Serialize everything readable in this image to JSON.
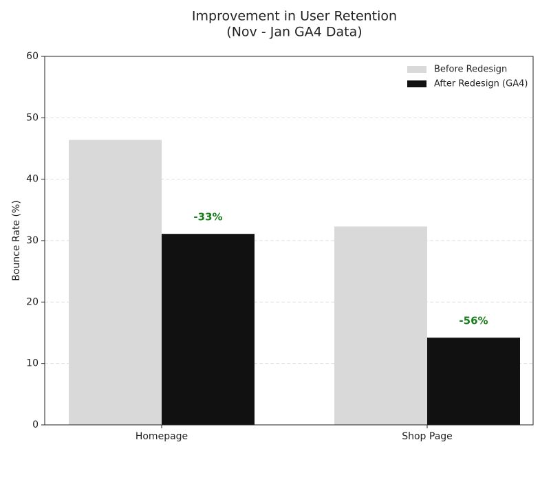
{
  "chart_data": {
    "type": "bar",
    "title": "Improvement in User Retention",
    "subtitle": "(Nov - Jan GA4 Data)",
    "y_label": "Bounce Rate (%)",
    "categories": [
      "Homepage",
      "Shop Page"
    ],
    "series": [
      {
        "name": "Before Redesign",
        "color": "#d9d9d9",
        "values": [
          46.4,
          32.3
        ]
      },
      {
        "name": "After Redesign (GA4)",
        "color": "#111111",
        "values": [
          31.1,
          14.2
        ]
      }
    ],
    "annotations": [
      "-33%",
      "-56%"
    ],
    "annotation_color": "#1a7f1a",
    "ylim": [
      0,
      60
    ],
    "yticks": [
      0,
      10,
      20,
      30,
      40,
      50,
      60
    ],
    "grid": true,
    "legend": "upper right"
  }
}
